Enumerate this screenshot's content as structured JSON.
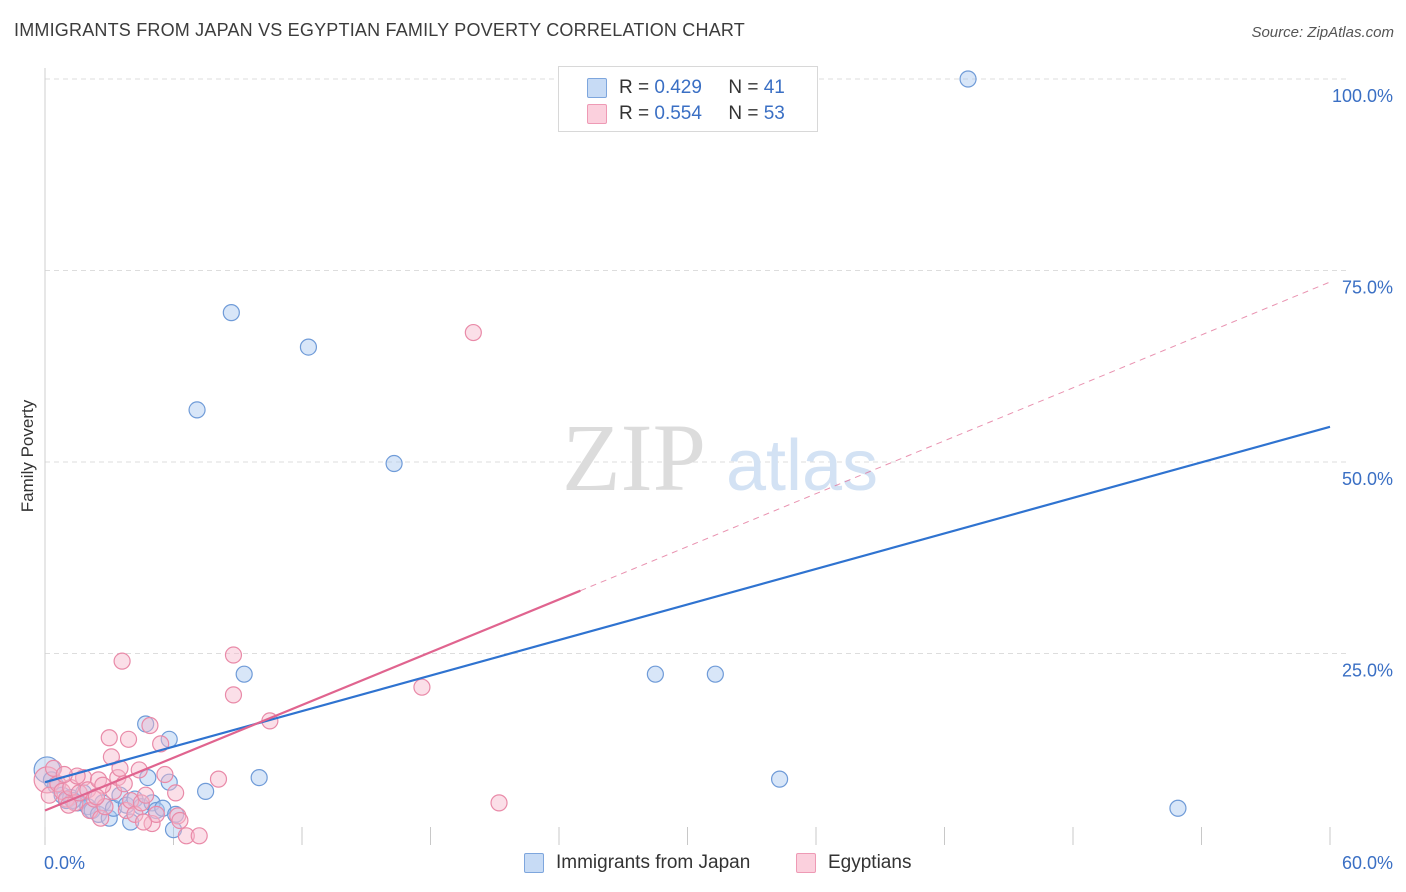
{
  "title": "IMMIGRANTS FROM JAPAN VS EGYPTIAN FAMILY POVERTY CORRELATION CHART",
  "source": "Source: ZipAtlas.com",
  "watermark": {
    "zip": "ZIP",
    "atlas": "atlas"
  },
  "legend": {
    "r_label": "R =",
    "n_label": "N =",
    "items": [
      {
        "name": "Immigrants from Japan",
        "r": "0.429",
        "n": "41"
      },
      {
        "name": "Egyptians",
        "r": "0.554",
        "n": "53"
      }
    ]
  },
  "colors": {
    "blue_fill": "#a9c8f0",
    "blue_stroke": "#6f9bd8",
    "blue_line": "#2f73d0",
    "pink_fill": "#f6b8cc",
    "pink_stroke": "#e98aa8",
    "pink_line": "#e0648f",
    "tick_text": "#3a6fc4",
    "grid": "#dddddd"
  },
  "chart_data": {
    "type": "scatter",
    "title": "IMMIGRANTS FROM JAPAN VS EGYPTIAN FAMILY POVERTY CORRELATION CHART",
    "xlabel": "",
    "ylabel": "Family Poverty",
    "xlim": [
      0,
      60
    ],
    "ylim": [
      0,
      100
    ],
    "x_tick_labels": [
      {
        "value": 0,
        "label": "0.0%"
      },
      {
        "value": 60,
        "label": "60.0%"
      }
    ],
    "y_tick_labels": [
      {
        "value": 25,
        "label": "25.0%"
      },
      {
        "value": 50,
        "label": "50.0%"
      },
      {
        "value": 75,
        "label": "75.0%"
      },
      {
        "value": 100,
        "label": "100.0%"
      }
    ],
    "series": [
      {
        "name": "Immigrants from Japan",
        "color": "blue",
        "R": 0.429,
        "N": 41,
        "trend": {
          "x0": 0,
          "y0": 8.2,
          "x1": 60,
          "y1": 54.6,
          "dashed_extension": false
        },
        "points": [
          [
            0.1,
            9.8
          ],
          [
            0.3,
            8.5
          ],
          [
            0.5,
            7.8
          ],
          [
            0.8,
            6.5
          ],
          [
            1.0,
            5.8
          ],
          [
            1.2,
            6.2
          ],
          [
            1.5,
            5.5
          ],
          [
            1.8,
            6.8
          ],
          [
            2.0,
            5.0
          ],
          [
            2.2,
            4.5
          ],
          [
            2.5,
            4.0
          ],
          [
            2.7,
            5.5
          ],
          [
            3.0,
            3.5
          ],
          [
            3.2,
            4.8
          ],
          [
            3.5,
            6.5
          ],
          [
            3.8,
            5.2
          ],
          [
            4.0,
            3.0
          ],
          [
            4.2,
            6.0
          ],
          [
            4.5,
            5.0
          ],
          [
            4.7,
            15.8
          ],
          [
            4.8,
            8.8
          ],
          [
            5.0,
            5.5
          ],
          [
            5.2,
            4.5
          ],
          [
            5.5,
            4.8
          ],
          [
            5.8,
            8.2
          ],
          [
            5.8,
            13.8
          ],
          [
            6.0,
            2.0
          ],
          [
            6.1,
            4.0
          ],
          [
            7.5,
            7.0
          ],
          [
            7.1,
            56.8
          ],
          [
            8.7,
            69.5
          ],
          [
            9.3,
            22.3
          ],
          [
            10.0,
            8.8
          ],
          [
            12.3,
            65.0
          ],
          [
            16.3,
            49.8
          ],
          [
            28.5,
            22.3
          ],
          [
            31.3,
            22.3
          ],
          [
            34.3,
            8.6
          ],
          [
            43.1,
            100.0
          ],
          [
            52.9,
            4.8
          ],
          [
            1.3,
            5.8
          ]
        ]
      },
      {
        "name": "Egyptians",
        "color": "pink",
        "R": 0.554,
        "N": 53,
        "trend": {
          "x0": 0,
          "y0": 4.5,
          "x1": 25.0,
          "y1": 33.2,
          "dashed_to": {
            "x": 60,
            "y": 73.5
          }
        },
        "points": [
          [
            0.1,
            8.5
          ],
          [
            0.2,
            6.5
          ],
          [
            0.4,
            10.0
          ],
          [
            0.6,
            8.0
          ],
          [
            0.8,
            7.0
          ],
          [
            1.0,
            6.0
          ],
          [
            1.2,
            7.5
          ],
          [
            1.4,
            5.5
          ],
          [
            1.6,
            6.8
          ],
          [
            1.8,
            8.8
          ],
          [
            2.0,
            7.2
          ],
          [
            2.1,
            4.5
          ],
          [
            2.3,
            6.0
          ],
          [
            2.5,
            8.5
          ],
          [
            2.6,
            3.5
          ],
          [
            2.8,
            5.0
          ],
          [
            3.0,
            14.0
          ],
          [
            3.1,
            11.5
          ],
          [
            3.2,
            7.0
          ],
          [
            3.4,
            8.8
          ],
          [
            3.5,
            10.0
          ],
          [
            3.6,
            24.0
          ],
          [
            3.8,
            4.5
          ],
          [
            3.9,
            13.8
          ],
          [
            4.0,
            5.8
          ],
          [
            4.2,
            4.0
          ],
          [
            4.4,
            9.8
          ],
          [
            4.5,
            5.5
          ],
          [
            4.7,
            6.5
          ],
          [
            4.9,
            15.6
          ],
          [
            5.0,
            2.8
          ],
          [
            5.2,
            4.0
          ],
          [
            5.4,
            13.2
          ],
          [
            5.6,
            9.2
          ],
          [
            6.1,
            6.8
          ],
          [
            6.2,
            3.8
          ],
          [
            6.3,
            3.2
          ],
          [
            6.6,
            1.2
          ],
          [
            7.2,
            1.2
          ],
          [
            8.1,
            8.6
          ],
          [
            8.8,
            24.8
          ],
          [
            8.8,
            19.6
          ],
          [
            10.5,
            16.2
          ],
          [
            17.6,
            20.6
          ],
          [
            20.0,
            66.9
          ],
          [
            21.2,
            5.5
          ],
          [
            1.5,
            9.0
          ],
          [
            2.7,
            7.8
          ],
          [
            1.1,
            5.2
          ],
          [
            0.9,
            9.2
          ],
          [
            2.4,
            6.3
          ],
          [
            3.7,
            8.0
          ],
          [
            4.6,
            3.0
          ]
        ]
      }
    ]
  }
}
